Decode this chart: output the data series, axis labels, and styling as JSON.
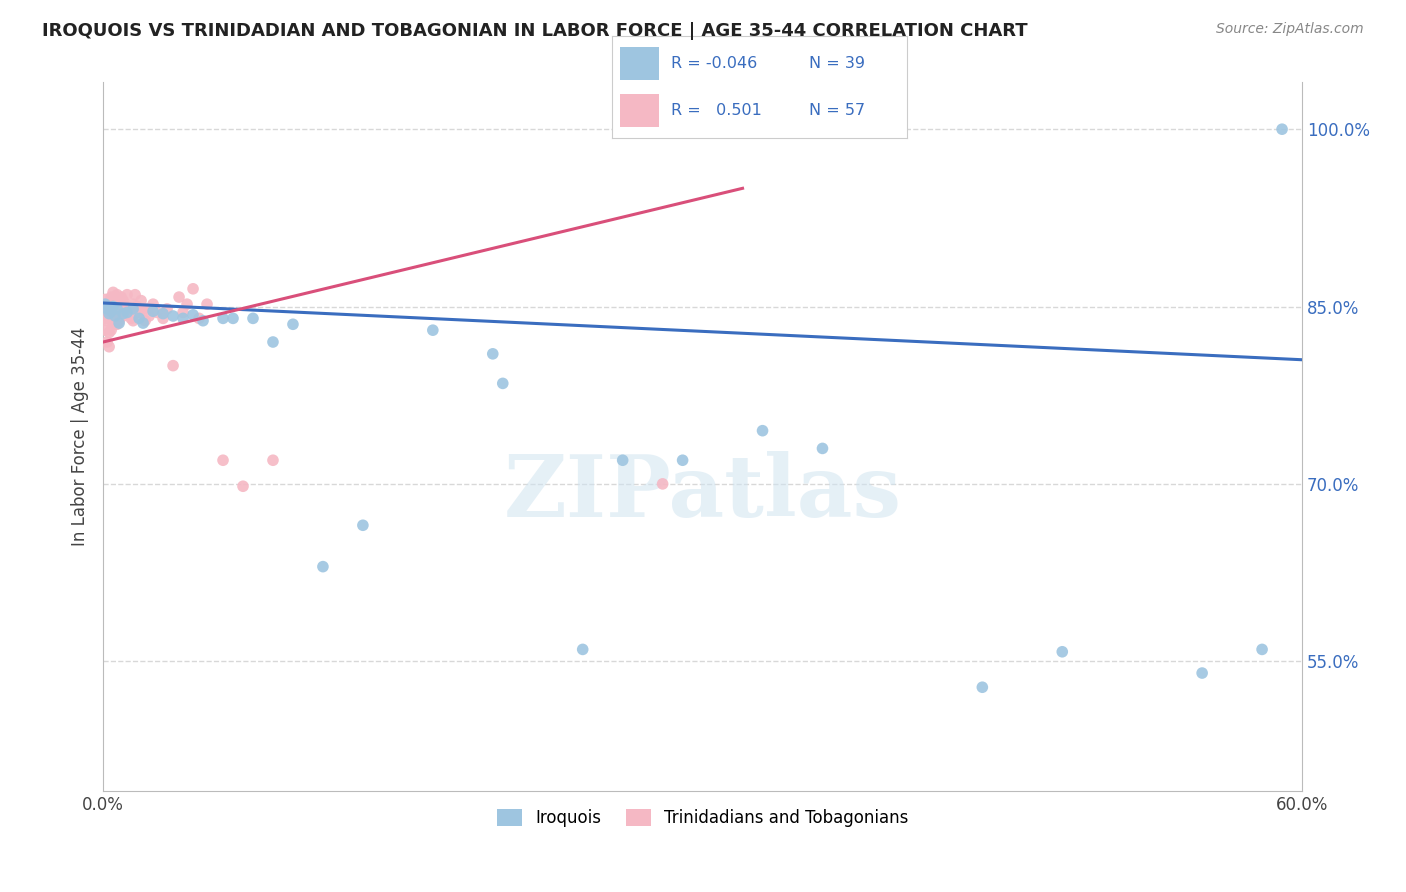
{
  "title": "IROQUOIS VS TRINIDADIAN AND TOBAGONIAN IN LABOR FORCE | AGE 35-44 CORRELATION CHART",
  "source": "Source: ZipAtlas.com",
  "ylabel": "In Labor Force | Age 35-44",
  "xlim": [
    0.0,
    0.6
  ],
  "ylim": [
    0.44,
    1.04
  ],
  "xticks": [
    0.0,
    0.1,
    0.2,
    0.3,
    0.4,
    0.5,
    0.6
  ],
  "xtick_labels": [
    "0.0%",
    "",
    "",
    "",
    "",
    "",
    "60.0%"
  ],
  "ytick_labels_right": [
    "55.0%",
    "70.0%",
    "85.0%",
    "100.0%"
  ],
  "ytick_vals_right": [
    0.55,
    0.7,
    0.85,
    1.0
  ],
  "grid_color": "#d8d8d8",
  "background_color": "#ffffff",
  "blue_color": "#9ec5e0",
  "pink_color": "#f5b8c4",
  "blue_line_color": "#3a6dbf",
  "pink_line_color": "#d94f7a",
  "legend_R_blue": "-0.046",
  "legend_N_blue": "39",
  "legend_R_pink": "0.501",
  "legend_N_pink": "57",
  "watermark": "ZIPatlas",
  "legend_label_blue": "Iroquois",
  "legend_label_pink": "Trinidadians and Tobagonians",
  "blue_scatter_x": [
    0.001,
    0.002,
    0.003,
    0.004,
    0.005,
    0.006,
    0.007,
    0.008,
    0.01,
    0.012,
    0.015,
    0.018,
    0.02,
    0.025,
    0.03,
    0.035,
    0.04,
    0.045,
    0.05,
    0.06,
    0.065,
    0.075,
    0.085,
    0.095,
    0.11,
    0.13,
    0.165,
    0.2,
    0.24,
    0.29,
    0.33,
    0.36,
    0.44,
    0.48,
    0.55,
    0.58,
    0.59,
    0.195,
    0.26
  ],
  "blue_scatter_y": [
    0.852,
    0.848,
    0.844,
    0.846,
    0.85,
    0.842,
    0.848,
    0.836,
    0.844,
    0.845,
    0.848,
    0.84,
    0.836,
    0.846,
    0.844,
    0.842,
    0.84,
    0.843,
    0.838,
    0.84,
    0.84,
    0.84,
    0.82,
    0.835,
    0.63,
    0.665,
    0.83,
    0.785,
    0.56,
    0.72,
    0.745,
    0.73,
    0.528,
    0.558,
    0.54,
    0.56,
    1.0,
    0.81,
    0.72
  ],
  "pink_scatter_x": [
    0.001,
    0.001,
    0.001,
    0.002,
    0.002,
    0.002,
    0.003,
    0.003,
    0.003,
    0.003,
    0.004,
    0.004,
    0.004,
    0.005,
    0.005,
    0.005,
    0.006,
    0.006,
    0.007,
    0.007,
    0.007,
    0.008,
    0.008,
    0.009,
    0.009,
    0.01,
    0.01,
    0.011,
    0.012,
    0.012,
    0.013,
    0.014,
    0.015,
    0.015,
    0.016,
    0.017,
    0.018,
    0.019,
    0.02,
    0.021,
    0.022,
    0.023,
    0.025,
    0.027,
    0.03,
    0.032,
    0.035,
    0.038,
    0.04,
    0.042,
    0.045,
    0.048,
    0.052,
    0.06,
    0.07,
    0.085,
    0.28
  ],
  "pink_scatter_y": [
    0.856,
    0.84,
    0.83,
    0.848,
    0.838,
    0.82,
    0.85,
    0.84,
    0.828,
    0.816,
    0.858,
    0.845,
    0.83,
    0.862,
    0.85,
    0.835,
    0.856,
    0.842,
    0.86,
    0.848,
    0.835,
    0.852,
    0.838,
    0.858,
    0.845,
    0.855,
    0.842,
    0.85,
    0.86,
    0.845,
    0.848,
    0.84,
    0.852,
    0.838,
    0.86,
    0.85,
    0.845,
    0.855,
    0.848,
    0.838,
    0.848,
    0.842,
    0.852,
    0.845,
    0.84,
    0.848,
    0.8,
    0.858,
    0.845,
    0.852,
    0.865,
    0.84,
    0.852,
    0.72,
    0.698,
    0.72,
    0.7
  ],
  "blue_trendline_x": [
    0.0,
    0.6
  ],
  "blue_trendline_y": [
    0.853,
    0.805
  ],
  "pink_trendline_x": [
    0.0,
    0.32
  ],
  "pink_trendline_y": [
    0.82,
    0.95
  ]
}
